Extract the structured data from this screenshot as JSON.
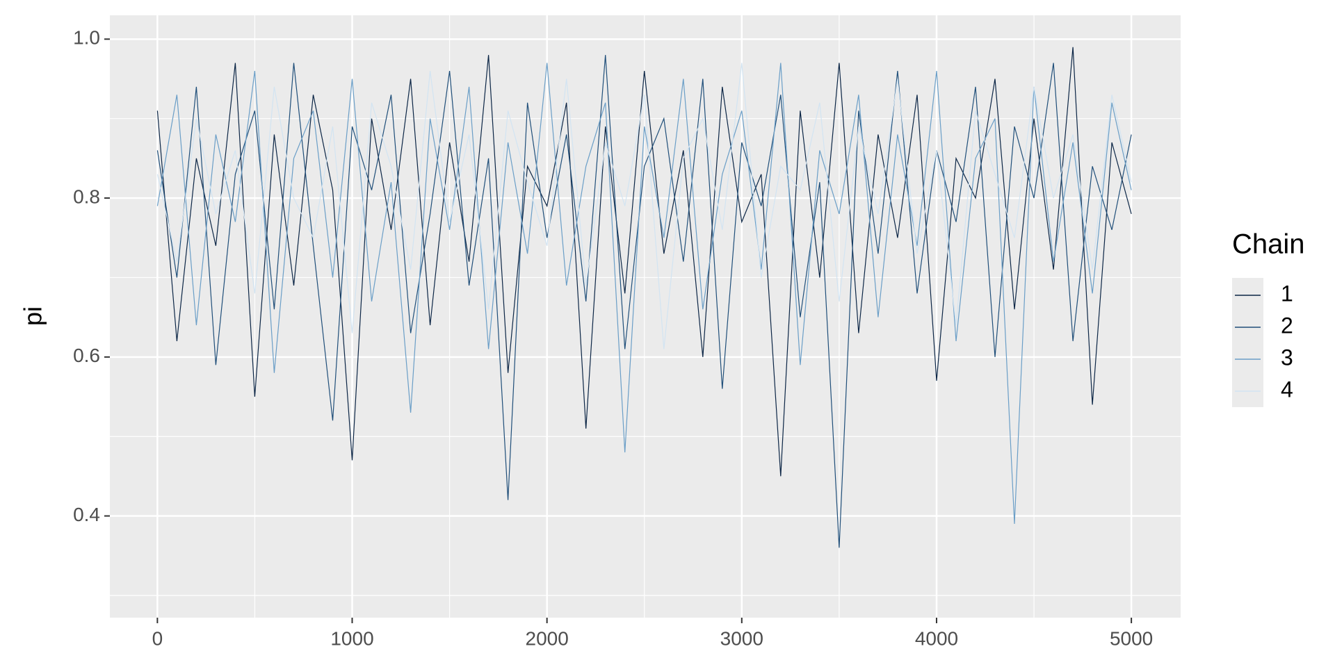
{
  "chart_data": {
    "type": "line",
    "y_label": "pi",
    "legend_title": "Chain",
    "x": [
      0,
      100,
      200,
      300,
      400,
      500,
      600,
      700,
      800,
      900,
      1000,
      1100,
      1200,
      1300,
      1400,
      1500,
      1600,
      1700,
      1800,
      1900,
      2000,
      2100,
      2200,
      2300,
      2400,
      2500,
      2600,
      2700,
      2800,
      2900,
      3000,
      3100,
      3200,
      3300,
      3400,
      3500,
      3600,
      3700,
      3800,
      3900,
      4000,
      4100,
      4200,
      4300,
      4400,
      4500,
      4600,
      4700,
      4800,
      4900,
      5000
    ],
    "series": [
      {
        "name": "1",
        "color": "#0b2545",
        "values": [
          0.91,
          0.62,
          0.85,
          0.74,
          0.97,
          0.55,
          0.88,
          0.69,
          0.93,
          0.81,
          0.47,
          0.9,
          0.76,
          0.95,
          0.64,
          0.87,
          0.72,
          0.98,
          0.58,
          0.84,
          0.79,
          0.92,
          0.51,
          0.89,
          0.68,
          0.96,
          0.73,
          0.86,
          0.6,
          0.94,
          0.77,
          0.83,
          0.45,
          0.91,
          0.7,
          0.97,
          0.63,
          0.88,
          0.75,
          0.93,
          0.57,
          0.85,
          0.8,
          0.95,
          0.66,
          0.9,
          0.71,
          0.99,
          0.54,
          0.87,
          0.78
        ]
      },
      {
        "name": "2",
        "color": "#1f4e79",
        "values": [
          0.86,
          0.7,
          0.94,
          0.59,
          0.83,
          0.91,
          0.66,
          0.97,
          0.74,
          0.52,
          0.89,
          0.81,
          0.93,
          0.63,
          0.78,
          0.96,
          0.69,
          0.85,
          0.42,
          0.92,
          0.75,
          0.88,
          0.67,
          0.98,
          0.61,
          0.84,
          0.9,
          0.72,
          0.95,
          0.56,
          0.87,
          0.79,
          0.93,
          0.65,
          0.82,
          0.36,
          0.91,
          0.73,
          0.96,
          0.68,
          0.86,
          0.77,
          0.94,
          0.6,
          0.89,
          0.8,
          0.97,
          0.62,
          0.84,
          0.76,
          0.88
        ]
      },
      {
        "name": "3",
        "color": "#6a9ec7",
        "values": [
          0.79,
          0.93,
          0.64,
          0.88,
          0.77,
          0.96,
          0.58,
          0.85,
          0.91,
          0.7,
          0.95,
          0.67,
          0.82,
          0.53,
          0.9,
          0.76,
          0.94,
          0.61,
          0.87,
          0.73,
          0.97,
          0.69,
          0.84,
          0.92,
          0.48,
          0.89,
          0.75,
          0.95,
          0.66,
          0.83,
          0.91,
          0.71,
          0.97,
          0.59,
          0.86,
          0.78,
          0.93,
          0.65,
          0.88,
          0.74,
          0.96,
          0.62,
          0.85,
          0.9,
          0.39,
          0.94,
          0.72,
          0.87,
          0.68,
          0.92,
          0.81
        ]
      },
      {
        "name": "4",
        "color": "#d2e4f2",
        "values": [
          0.83,
          0.72,
          0.9,
          0.78,
          0.86,
          0.68,
          0.94,
          0.8,
          0.75,
          0.89,
          0.63,
          0.92,
          0.84,
          0.71,
          0.96,
          0.77,
          0.88,
          0.66,
          0.91,
          0.82,
          0.74,
          0.95,
          0.69,
          0.87,
          0.79,
          0.93,
          0.61,
          0.85,
          0.9,
          0.76,
          0.97,
          0.7,
          0.84,
          0.81,
          0.92,
          0.67,
          0.89,
          0.78,
          0.95,
          0.73,
          0.86,
          0.64,
          0.91,
          0.83,
          0.75,
          0.94,
          0.8,
          0.88,
          0.71,
          0.93,
          0.82
        ]
      }
    ],
    "xlim": [
      -244,
      5253
    ],
    "xticks": [
      0,
      1000,
      2000,
      3000,
      4000,
      5000
    ],
    "xminor": [
      500,
      1500,
      2500,
      3500,
      4500
    ],
    "ylim": [
      0.272,
      1.03
    ],
    "yticks": [
      0.4,
      0.6,
      0.8,
      {
        "value": 1,
        "label": "1.0"
      }
    ],
    "yminor": [
      0.3,
      0.5,
      0.7,
      0.9
    ],
    "grid": true
  }
}
